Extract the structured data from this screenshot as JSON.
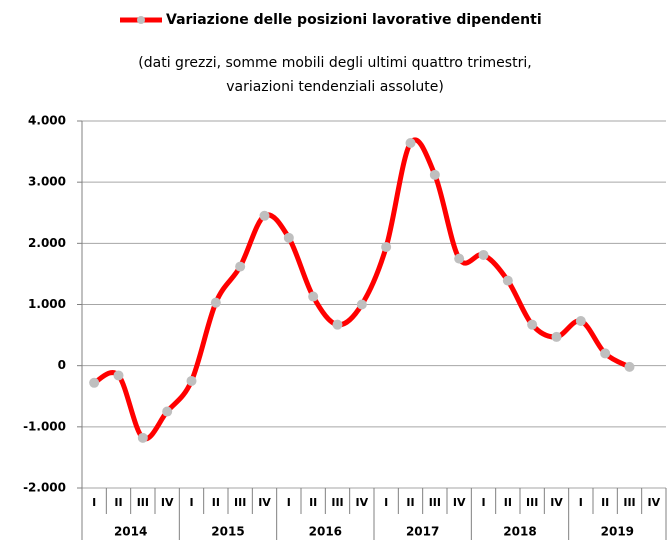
{
  "chart_data": {
    "type": "line",
    "title": "Variazione delle posizioni lavorative dipendenti",
    "subtitle": [
      "(dati grezzi, somme mobili degli ultimi quattro trimestri,",
      "variazioni tendenziali assolute)"
    ],
    "categories": [
      "I",
      "II",
      "III",
      "IV",
      "I",
      "II",
      "III",
      "IV",
      "I",
      "II",
      "III",
      "IV",
      "I",
      "II",
      "III",
      "IV",
      "I",
      "II",
      "III",
      "IV",
      "I",
      "II",
      "III",
      "IV"
    ],
    "groups": [
      "2014",
      "2015",
      "2016",
      "2017",
      "2018",
      "2019"
    ],
    "series": [
      {
        "name": "Variazione delle posizioni lavorative dipendenti",
        "color": "#ff0000",
        "marker_color": "#bfbfbf",
        "values": [
          -280,
          -160,
          -1180,
          -750,
          -250,
          1030,
          1620,
          2450,
          2090,
          1130,
          670,
          1000,
          1940,
          3640,
          3120,
          1750,
          1810,
          1390,
          670,
          470,
          730,
          200,
          -20,
          null
        ]
      }
    ],
    "ylim": [
      -2000,
      4000
    ],
    "yticks": [
      {
        "value": -2000,
        "label": "-2.000"
      },
      {
        "value": -1000,
        "label": "-1.000"
      },
      0,
      {
        "value": 1000,
        "label": "1.000"
      },
      {
        "value": 2000,
        "label": "2.000"
      },
      {
        "value": 3000,
        "label": "3.000"
      },
      {
        "value": 4000,
        "label": "4.000"
      }
    ],
    "grid": true,
    "smooth": true
  }
}
